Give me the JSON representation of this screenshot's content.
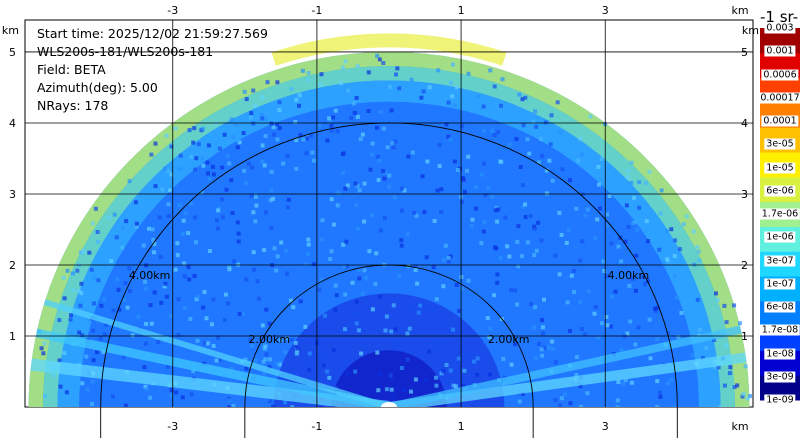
{
  "info": {
    "start_time": "Start time: 2025/12/02 21:59:27.569",
    "instrument": "WLS200s-181/WLS200s-181",
    "field": "Field: BETA",
    "azimuth": "Azimuth(deg): 5.00",
    "nrays": "NRays: 178"
  },
  "chart_data": {
    "type": "heatmap",
    "projection": "rhi",
    "x_unit_label": "km",
    "y_unit_label": "km",
    "x_ticks": [
      -3,
      -1,
      1,
      3
    ],
    "x_tick_labels": [
      "-3",
      "-1",
      "1",
      "3"
    ],
    "y_ticks": [
      1,
      2,
      3,
      4,
      5
    ],
    "y_tick_labels": [
      "1",
      "2",
      "3",
      "4",
      "5"
    ],
    "xlim": [
      -5.05,
      5.05
    ],
    "ylim": [
      0,
      5.45
    ],
    "max_range_km": 5.0,
    "range_rings": [
      {
        "range": 2.0,
        "labels": [
          "2.00km",
          "2.00km"
        ]
      },
      {
        "range": 4.0,
        "labels": [
          "4.00km",
          "4.00km"
        ]
      }
    ],
    "grid": true,
    "colorbar": {
      "unit_label": "-1 sr-",
      "colors": [
        "#00008b",
        "#0000d0",
        "#0040ff",
        "#0080ff",
        "#00b0ff",
        "#20d8ff",
        "#60f0e0",
        "#a0f090",
        "#d8f040",
        "#fff000",
        "#ffc000",
        "#ff8000",
        "#ff4000",
        "#e00000",
        "#a00000"
      ],
      "labels": [
        "1e-09",
        "3e-09",
        "1e-08",
        "1.7e-08",
        "6e-08",
        "1e-07",
        "3e-07",
        "1e-06",
        "1.7e-06",
        "6e-06",
        "1e-05",
        "3e-05",
        "0.0001",
        "0.00017",
        "0.0006",
        "0.001",
        "0.003"
      ]
    }
  }
}
